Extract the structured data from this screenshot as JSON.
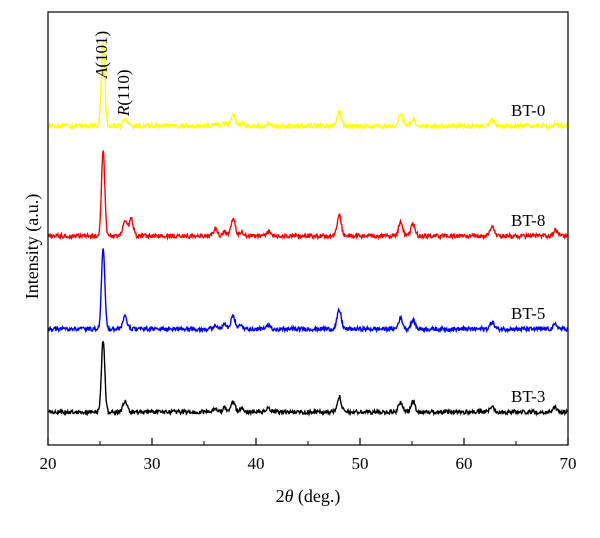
{
  "chart_data": {
    "type": "line",
    "xlabel": "2θ (deg.)",
    "ylabel": "Intensity (a.u.)",
    "xlim": [
      20,
      70
    ],
    "xticks": [
      "20",
      "30",
      "40",
      "50",
      "60",
      "70"
    ],
    "xtick_values": [
      20,
      30,
      40,
      50,
      60,
      70
    ],
    "grid": false,
    "legend": "labels placed at right end of each trace",
    "offset_step": 1.0,
    "annotations": [
      {
        "label": "A(101)",
        "x": 25.3,
        "y": 1.0
      },
      {
        "label": "R(110)",
        "x": 27.4,
        "y": 0.2
      }
    ],
    "peaks_common": [
      25.3,
      27.4,
      36.1,
      37.0,
      37.8,
      38.6,
      41.2,
      48.0,
      53.9,
      55.1,
      62.7,
      68.8
    ],
    "series": [
      {
        "name": "BT-0",
        "color": "#ffff00",
        "offset_level": 3,
        "peak_heights": [
          1.0,
          0.08,
          0.03,
          0.04,
          0.13,
          0.03,
          0.03,
          0.16,
          0.14,
          0.08,
          0.07,
          0.03
        ]
      },
      {
        "name": "BT-8",
        "color": "#ff0000",
        "offset_level": 2,
        "peak_heights": [
          1.0,
          0.18,
          0.08,
          0.05,
          0.2,
          0.04,
          0.05,
          0.24,
          0.16,
          0.14,
          0.11,
          0.07
        ],
        "extra_peaks": [
          {
            "x": 28.0,
            "h": 0.2
          }
        ]
      },
      {
        "name": "BT-5",
        "color": "#0000ff",
        "offset_level": 1,
        "peak_heights": [
          0.95,
          0.15,
          0.05,
          0.05,
          0.15,
          0.04,
          0.04,
          0.22,
          0.13,
          0.1,
          0.08,
          0.05
        ]
      },
      {
        "name": "BT-3",
        "color": "#000000",
        "offset_level": 0,
        "peak_heights": [
          0.85,
          0.12,
          0.05,
          0.05,
          0.12,
          0.04,
          0.04,
          0.18,
          0.12,
          0.12,
          0.07,
          0.05
        ]
      }
    ]
  }
}
